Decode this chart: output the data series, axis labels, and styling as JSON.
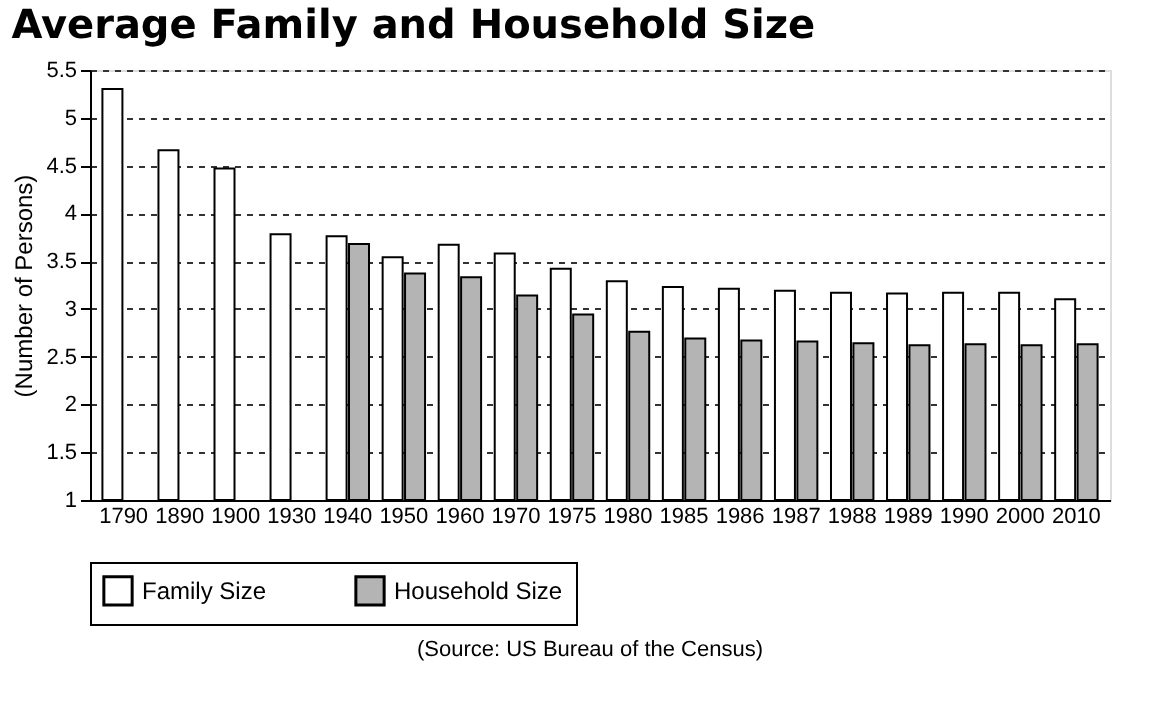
{
  "chart_data": {
    "type": "bar",
    "title": "Average Family and Household Size",
    "ylabel": "(Number of Persons)",
    "categories": [
      "1790",
      "1890",
      "1900",
      "1930",
      "1940",
      "1950",
      "1960",
      "1970",
      "1975",
      "1980",
      "1985",
      "1986",
      "1987",
      "1988",
      "1989",
      "1990",
      "2000",
      "2010"
    ],
    "series": [
      {
        "name": "Family Size",
        "color": "#ffffff",
        "values": [
          5.3,
          4.66,
          4.47,
          3.78,
          3.76,
          3.54,
          3.67,
          3.58,
          3.42,
          3.29,
          3.23,
          3.21,
          3.19,
          3.17,
          3.16,
          3.17,
          3.17,
          3.1
        ]
      },
      {
        "name": "Household Size",
        "color": "#b4b4b4",
        "values": [
          null,
          null,
          null,
          null,
          3.68,
          3.37,
          3.33,
          3.14,
          2.94,
          2.76,
          2.69,
          2.67,
          2.66,
          2.64,
          2.62,
          2.63,
          2.62,
          2.63
        ]
      }
    ],
    "ylim": [
      1,
      5.5
    ],
    "yticks": [
      1,
      1.5,
      2,
      2.5,
      3,
      3.5,
      4,
      4.5,
      5,
      5.5
    ],
    "grid": "y",
    "legend": "bottom",
    "annotations": [
      "(Source: US Bureau of the Census)"
    ]
  }
}
